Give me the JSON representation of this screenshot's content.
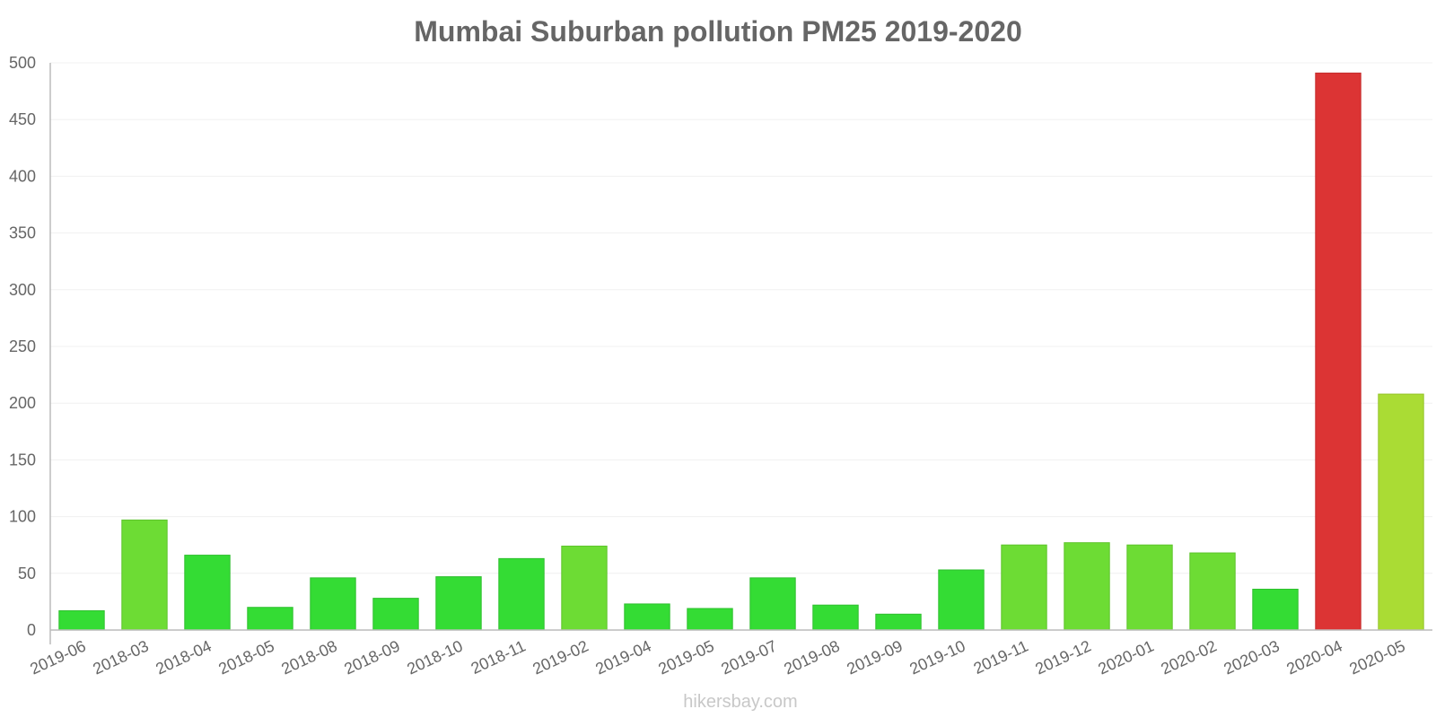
{
  "chart_data": {
    "type": "bar",
    "title": "Mumbai Suburban pollution PM25 2019-2020",
    "xlabel": "",
    "ylabel": "",
    "ylim": [
      0,
      500
    ],
    "yticks": [
      0,
      50,
      100,
      150,
      200,
      250,
      300,
      350,
      400,
      450,
      500
    ],
    "grid": true,
    "categories": [
      "2019-06",
      "2018-03",
      "2018-04",
      "2018-05",
      "2018-08",
      "2018-09",
      "2018-10",
      "2018-11",
      "2019-02",
      "2019-04",
      "2019-05",
      "2019-07",
      "2019-08",
      "2019-09",
      "2019-10",
      "2019-11",
      "2019-12",
      "2020-01",
      "2020-02",
      "2020-03",
      "2020-04",
      "2020-05"
    ],
    "values": [
      17,
      97,
      66,
      20,
      46,
      28,
      47,
      63,
      74,
      23,
      19,
      46,
      22,
      14,
      53,
      75,
      77,
      75,
      68,
      36,
      491,
      208
    ],
    "bar_colors": [
      "#34dc34",
      "#6ddc34",
      "#34dc34",
      "#34dc34",
      "#34dc34",
      "#34dc34",
      "#34dc34",
      "#34dc34",
      "#6ddc34",
      "#34dc34",
      "#34dc34",
      "#34dc34",
      "#34dc34",
      "#34dc34",
      "#34dc34",
      "#6ddc34",
      "#6ddc34",
      "#6ddc34",
      "#6ddc34",
      "#34dc34",
      "#dc3434",
      "#aadc34"
    ],
    "bar_border_colors": [
      "#2ebf2e",
      "#5ec42c",
      "#2ebf2e",
      "#2ebf2e",
      "#2ebf2e",
      "#2ebf2e",
      "#2ebf2e",
      "#2ebf2e",
      "#5ec42c",
      "#2ebf2e",
      "#2ebf2e",
      "#2ebf2e",
      "#2ebf2e",
      "#2ebf2e",
      "#2ebf2e",
      "#5ec42c",
      "#5ec42c",
      "#5ec42c",
      "#5ec42c",
      "#2ebf2e",
      "#c42c2c",
      "#95c42c"
    ]
  },
  "colors": {
    "title": "#666666",
    "tick_text": "#666666",
    "axis": "#bbbbbb",
    "grid": "#f0f0f0",
    "watermark": "#c8c8c8"
  },
  "watermark": "hikersbay.com"
}
